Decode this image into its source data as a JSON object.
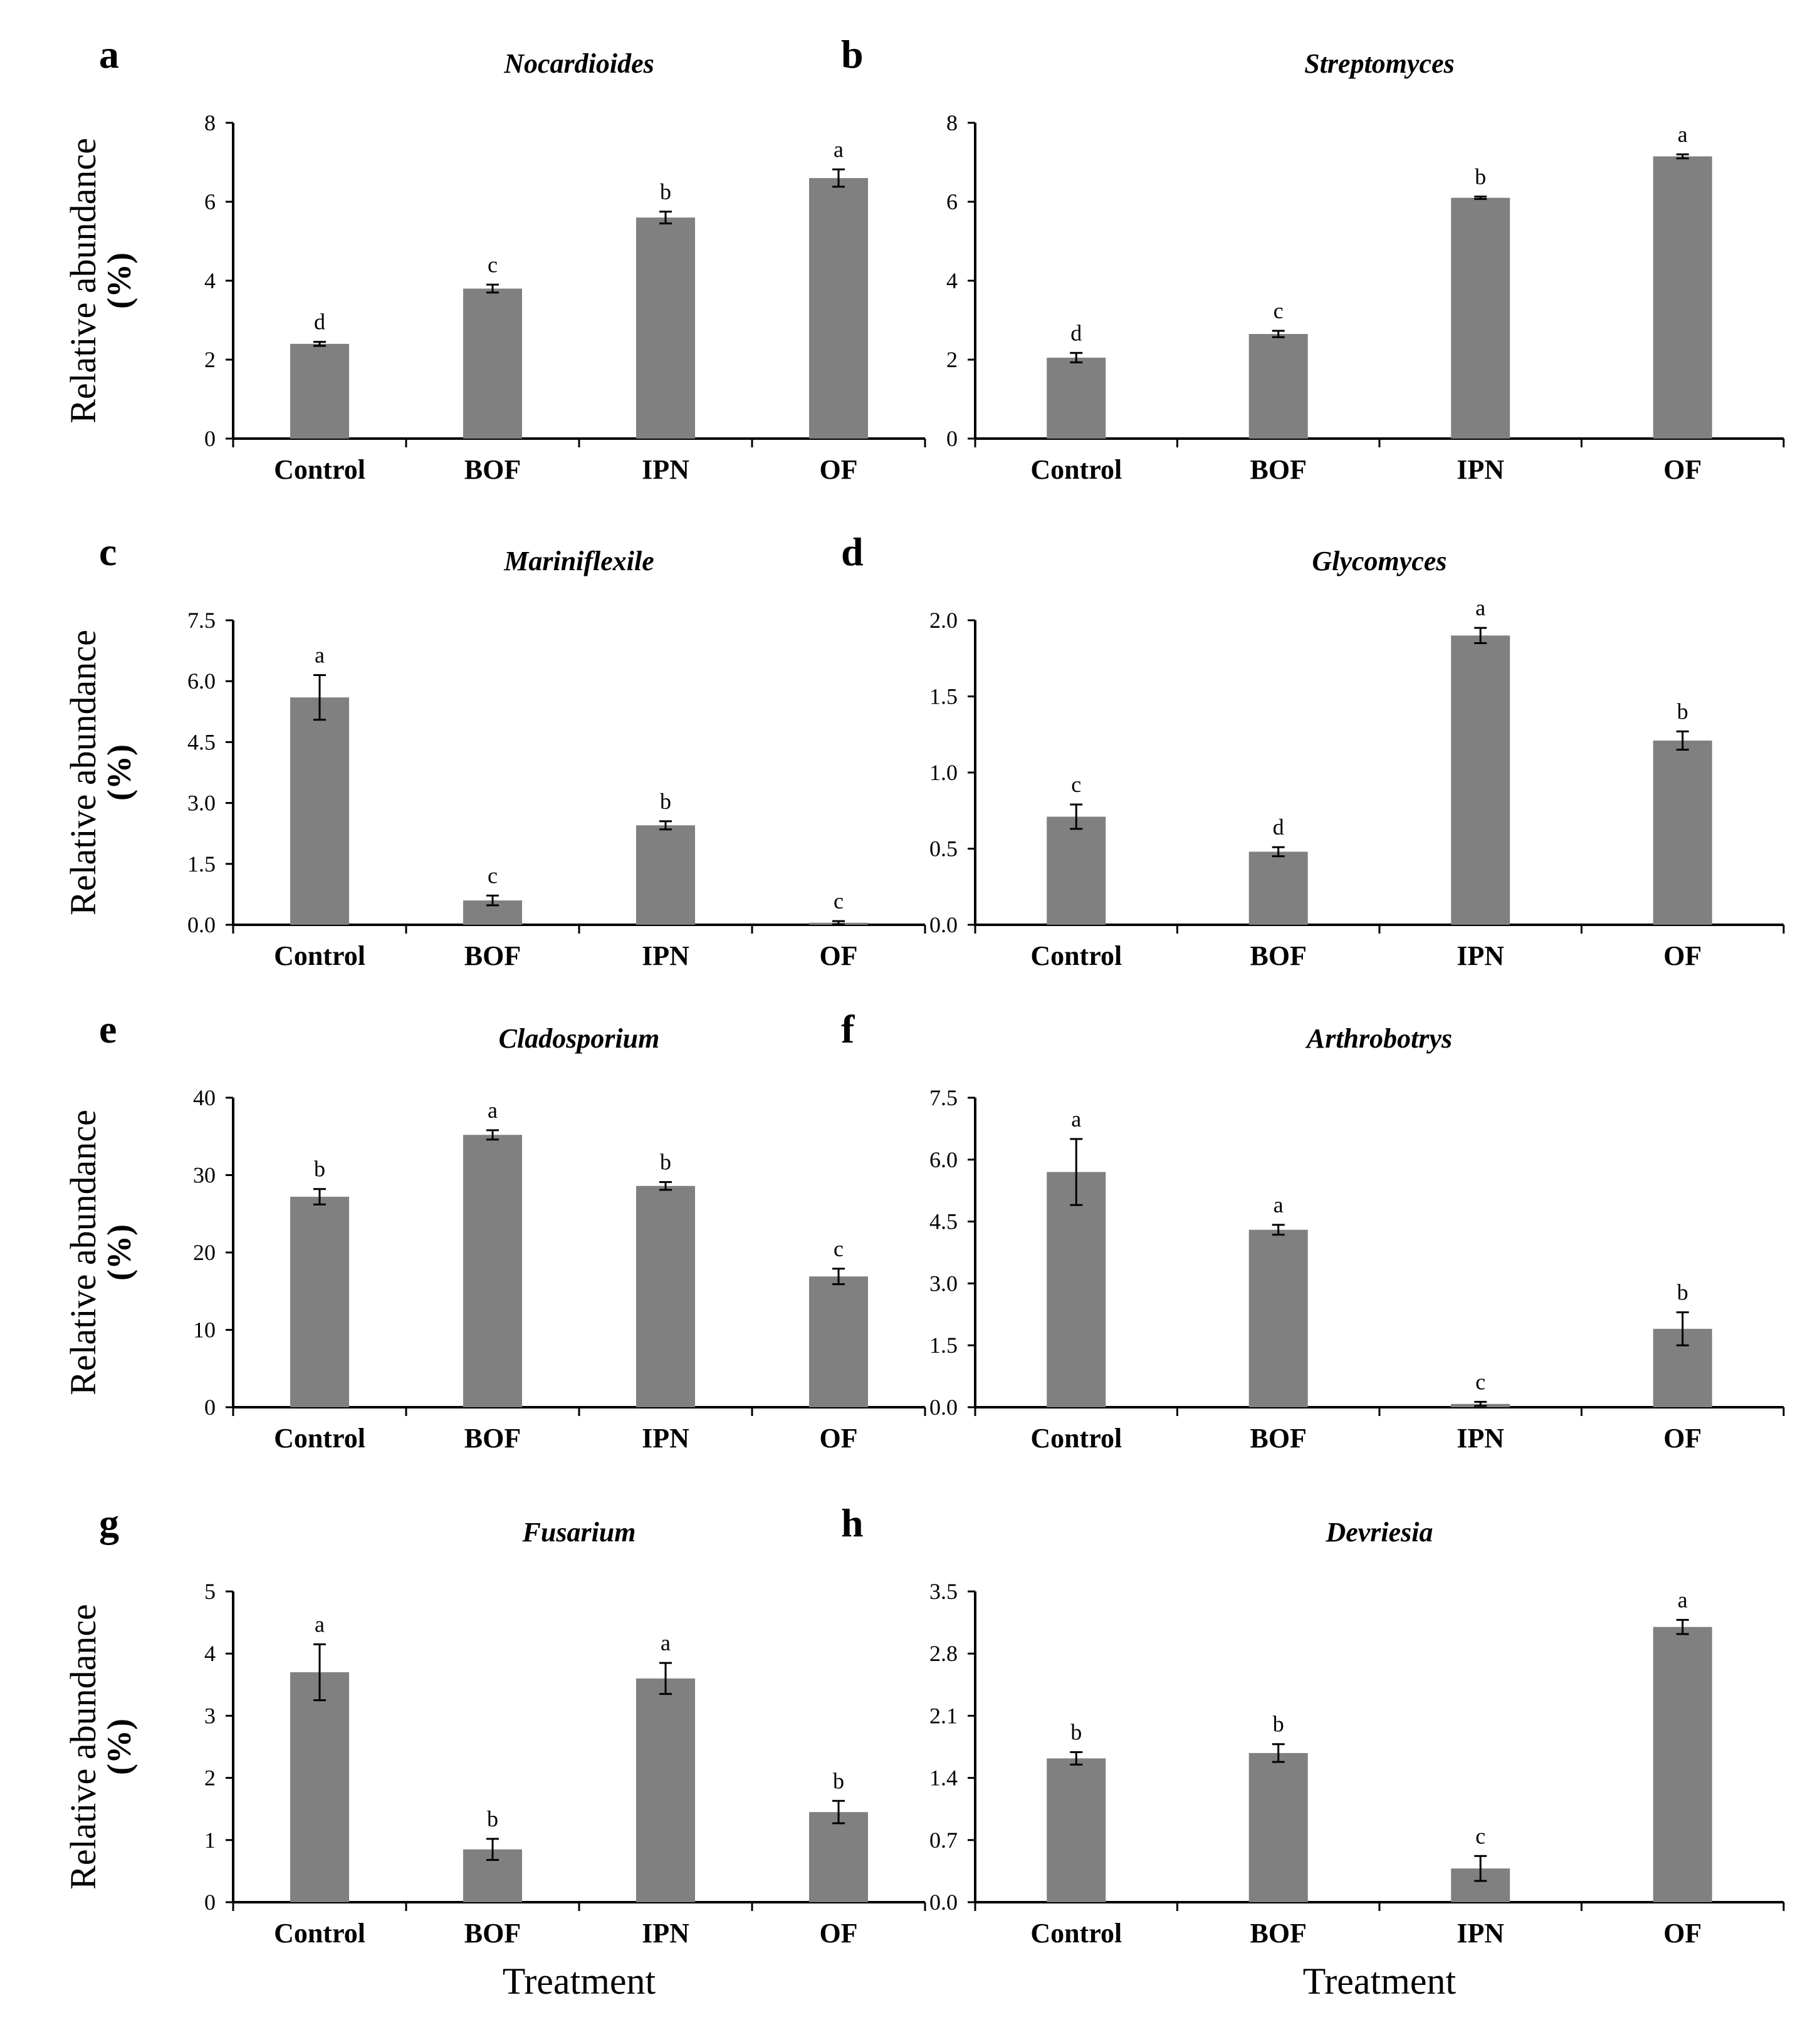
{
  "figure": {
    "bar_color": "#808080",
    "ylabel": "Relative abundance",
    "ylabel_unit": "(%)",
    "xlabel": "Treatment"
  },
  "chart_data": [
    {
      "panel": "a",
      "type": "bar",
      "title": "Nocardioides",
      "categories": [
        "Control",
        "BOF",
        "IPN",
        "OF"
      ],
      "values": [
        2.4,
        3.8,
        5.6,
        6.6
      ],
      "errors": [
        0.05,
        0.1,
        0.15,
        0.22
      ],
      "letters": [
        "d",
        "c",
        "b",
        "a"
      ],
      "ylim": [
        0,
        8
      ],
      "yticks": [
        0,
        2,
        4,
        6,
        8
      ],
      "ytick_labels": [
        "0",
        "2",
        "4",
        "6",
        "8"
      ],
      "ylabel": "Relative abundance",
      "ylabel_unit": "(%)",
      "xlabel": ""
    },
    {
      "panel": "b",
      "type": "bar",
      "title": "Streptomyces",
      "categories": [
        "Control",
        "BOF",
        "IPN",
        "OF"
      ],
      "values": [
        2.05,
        2.65,
        6.1,
        7.15
      ],
      "errors": [
        0.12,
        0.08,
        0.03,
        0.05
      ],
      "letters": [
        "d",
        "c",
        "b",
        "a"
      ],
      "ylim": [
        0,
        8
      ],
      "yticks": [
        0,
        2,
        4,
        6,
        8
      ],
      "ytick_labels": [
        "0",
        "2",
        "4",
        "6",
        "8"
      ],
      "ylabel": "",
      "ylabel_unit": "",
      "xlabel": ""
    },
    {
      "panel": "c",
      "type": "bar",
      "title": "Mariniflexile",
      "categories": [
        "Control",
        "BOF",
        "IPN",
        "OF"
      ],
      "values": [
        5.6,
        0.6,
        2.45,
        0.05
      ],
      "errors": [
        0.55,
        0.12,
        0.1,
        0.04
      ],
      "letters": [
        "a",
        "c",
        "b",
        "c"
      ],
      "ylim": [
        0,
        7.5
      ],
      "yticks": [
        0,
        1.5,
        3,
        4.5,
        6,
        7.5
      ],
      "ytick_labels": [
        "0.0",
        "1.5",
        "3.0",
        "4.5",
        "6.0",
        "7.5"
      ],
      "ylabel": "Relative abundance",
      "ylabel_unit": "(%)",
      "xlabel": ""
    },
    {
      "panel": "d",
      "type": "bar",
      "title": "Glycomyces",
      "categories": [
        "Control",
        "BOF",
        "IPN",
        "OF"
      ],
      "values": [
        0.71,
        0.48,
        1.9,
        1.21
      ],
      "errors": [
        0.08,
        0.03,
        0.05,
        0.06
      ],
      "letters": [
        "c",
        "d",
        "a",
        "b"
      ],
      "ylim": [
        0,
        2
      ],
      "yticks": [
        0,
        0.5,
        1,
        1.5,
        2
      ],
      "ytick_labels": [
        "0.0",
        "0.5",
        "1.0",
        "1.5",
        "2.0"
      ],
      "ylabel": "",
      "ylabel_unit": "",
      "xlabel": ""
    },
    {
      "panel": "e",
      "type": "bar",
      "title": "Cladosporium",
      "categories": [
        "Control",
        "BOF",
        "IPN",
        "OF"
      ],
      "values": [
        27.2,
        35.2,
        28.6,
        16.9
      ],
      "errors": [
        1.0,
        0.6,
        0.5,
        1.0
      ],
      "letters": [
        "b",
        "a",
        "b",
        "c"
      ],
      "ylim": [
        0,
        40
      ],
      "yticks": [
        0,
        10,
        20,
        30,
        40
      ],
      "ytick_labels": [
        "0",
        "10",
        "20",
        "30",
        "40"
      ],
      "ylabel": "Relative abundance",
      "ylabel_unit": "(%)",
      "xlabel": ""
    },
    {
      "panel": "f",
      "type": "bar",
      "title": "Arthrobotrys",
      "categories": [
        "Control",
        "BOF",
        "IPN",
        "OF"
      ],
      "values": [
        5.7,
        4.3,
        0.08,
        1.9
      ],
      "errors": [
        0.8,
        0.12,
        0.05,
        0.4
      ],
      "letters": [
        "a",
        "a",
        "c",
        "b"
      ],
      "ylim": [
        0,
        7.5
      ],
      "yticks": [
        0,
        1.5,
        3,
        4.5,
        6,
        7.5
      ],
      "ytick_labels": [
        "0.0",
        "1.5",
        "3.0",
        "4.5",
        "6.0",
        "7.5"
      ],
      "ylabel": "",
      "ylabel_unit": "",
      "xlabel": ""
    },
    {
      "panel": "g",
      "type": "bar",
      "title": "Fusarium",
      "categories": [
        "Control",
        "BOF",
        "IPN",
        "OF"
      ],
      "values": [
        3.7,
        0.85,
        3.6,
        1.45
      ],
      "errors": [
        0.45,
        0.17,
        0.25,
        0.18
      ],
      "letters": [
        "a",
        "b",
        "a",
        "b"
      ],
      "ylim": [
        0,
        5
      ],
      "yticks": [
        0,
        1,
        2,
        3,
        4,
        5
      ],
      "ytick_labels": [
        "0",
        "1",
        "2",
        "3",
        "4",
        "5"
      ],
      "ylabel": "Relative abundance",
      "ylabel_unit": "(%)",
      "xlabel": "Treatment"
    },
    {
      "panel": "h",
      "type": "bar",
      "title": "Devriesia",
      "categories": [
        "Control",
        "BOF",
        "IPN",
        "OF"
      ],
      "values": [
        1.62,
        1.68,
        0.38,
        3.1
      ],
      "errors": [
        0.07,
        0.1,
        0.14,
        0.08
      ],
      "letters": [
        "b",
        "b",
        "c",
        "a"
      ],
      "ylim": [
        0,
        3.5
      ],
      "yticks": [
        0,
        0.7,
        1.4,
        2.1,
        2.8,
        3.5
      ],
      "ytick_labels": [
        "0.0",
        "0.7",
        "1.4",
        "2.1",
        "2.8",
        "3.5"
      ],
      "ylabel": "",
      "ylabel_unit": "",
      "xlabel": "Treatment"
    }
  ]
}
